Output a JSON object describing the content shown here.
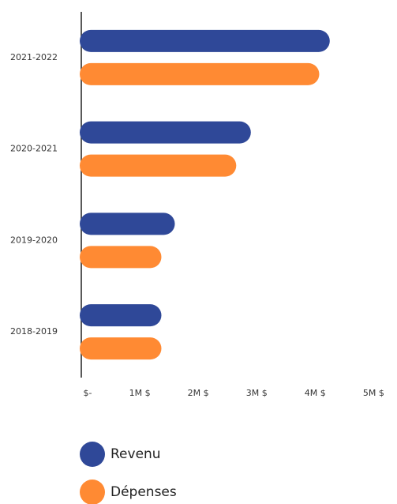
{
  "chart_data": {
    "type": "hbar",
    "categories": [
      "2021-2022",
      "2020-2021",
      "2019-2020",
      "2018-2019"
    ],
    "series": [
      {
        "name": "Revenu",
        "color": "#2f4898",
        "values": [
          4.25,
          2.9,
          1.6,
          1.37
        ]
      },
      {
        "name": "Dépenses",
        "color": "#ff8a33",
        "values": [
          4.07,
          2.65,
          1.37,
          1.37
        ]
      }
    ],
    "xlim": [
      0,
      5.4
    ],
    "xticks": [
      {
        "value": 0,
        "label": "$-"
      },
      {
        "value": 1,
        "label": "1M $"
      },
      {
        "value": 2,
        "label": "2M $"
      },
      {
        "value": 3,
        "label": "3M $"
      },
      {
        "value": 4,
        "label": "4M $"
      },
      {
        "value": 5,
        "label": "5M $"
      }
    ],
    "legend": "bottom-left"
  }
}
